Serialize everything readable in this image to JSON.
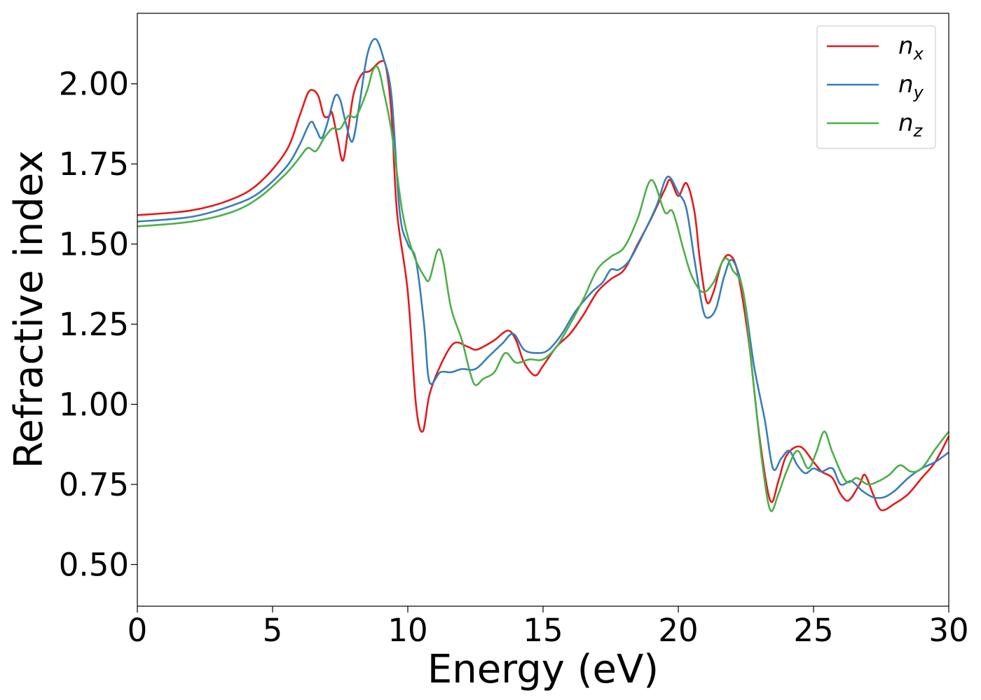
{
  "chart_data": {
    "type": "line",
    "xlabel": "Energy (eV)",
    "ylabel": "Refractive index",
    "xlim": [
      0,
      30
    ],
    "ylim": [
      0.37,
      2.22
    ],
    "xticks": [
      0,
      5,
      10,
      15,
      20,
      25,
      30
    ],
    "xtick_labels": [
      "0",
      "5",
      "10",
      "15",
      "20",
      "25",
      "30"
    ],
    "yticks": [
      0.5,
      0.75,
      1.0,
      1.25,
      1.5,
      1.75,
      2.0
    ],
    "ytick_labels": [
      "0.50",
      "0.75",
      "1.00",
      "1.25",
      "1.50",
      "1.75",
      "2.00"
    ],
    "grid": false,
    "legend_position": "top-right",
    "series": [
      {
        "name": "n",
        "subscript": "x",
        "color": "#e41a1c",
        "points": [
          [
            0,
            1.59
          ],
          [
            2,
            1.605
          ],
          [
            3.5,
            1.64
          ],
          [
            4.5,
            1.69
          ],
          [
            5.5,
            1.79
          ],
          [
            6,
            1.9
          ],
          [
            6.3,
            1.97
          ],
          [
            6.5,
            1.98
          ],
          [
            6.7,
            1.96
          ],
          [
            6.9,
            1.9
          ],
          [
            7.1,
            1.9
          ],
          [
            7.2,
            1.91
          ],
          [
            7.4,
            1.83
          ],
          [
            7.6,
            1.76
          ],
          [
            7.8,
            1.86
          ],
          [
            8,
            1.97
          ],
          [
            8.3,
            2.03
          ],
          [
            8.6,
            2.04
          ],
          [
            9,
            2.07
          ],
          [
            9.2,
            2.05
          ],
          [
            9.4,
            1.9
          ],
          [
            9.6,
            1.6
          ],
          [
            10,
            1.35
          ],
          [
            10.3,
            1.0
          ],
          [
            10.55,
            0.915
          ],
          [
            10.8,
            1.03
          ],
          [
            11.2,
            1.12
          ],
          [
            11.7,
            1.19
          ],
          [
            12.2,
            1.18
          ],
          [
            12.5,
            1.17
          ],
          [
            12.8,
            1.18
          ],
          [
            13.2,
            1.2
          ],
          [
            13.7,
            1.23
          ],
          [
            14,
            1.2
          ],
          [
            14.3,
            1.13
          ],
          [
            14.7,
            1.09
          ],
          [
            15,
            1.12
          ],
          [
            15.5,
            1.18
          ],
          [
            16,
            1.22
          ],
          [
            16.5,
            1.28
          ],
          [
            17,
            1.35
          ],
          [
            17.5,
            1.39
          ],
          [
            18,
            1.42
          ],
          [
            18.5,
            1.5
          ],
          [
            19,
            1.58
          ],
          [
            19.5,
            1.67
          ],
          [
            19.7,
            1.7
          ],
          [
            20,
            1.65
          ],
          [
            20.3,
            1.69
          ],
          [
            20.6,
            1.6
          ],
          [
            20.8,
            1.45
          ],
          [
            21.05,
            1.32
          ],
          [
            21.3,
            1.35
          ],
          [
            21.6,
            1.44
          ],
          [
            21.9,
            1.465
          ],
          [
            22.2,
            1.41
          ],
          [
            22.6,
            1.2
          ],
          [
            23,
            0.9
          ],
          [
            23.4,
            0.7
          ],
          [
            23.7,
            0.76
          ],
          [
            24,
            0.84
          ],
          [
            24.5,
            0.868
          ],
          [
            25,
            0.82
          ],
          [
            25.3,
            0.79
          ],
          [
            25.7,
            0.77
          ],
          [
            26,
            0.72
          ],
          [
            26.3,
            0.7
          ],
          [
            26.7,
            0.75
          ],
          [
            26.9,
            0.78
          ],
          [
            27.2,
            0.72
          ],
          [
            27.5,
            0.67
          ],
          [
            28,
            0.69
          ],
          [
            28.5,
            0.72
          ],
          [
            29,
            0.77
          ],
          [
            29.5,
            0.82
          ],
          [
            30,
            0.9
          ]
        ]
      },
      {
        "name": "n",
        "subscript": "y",
        "color": "#377eb8",
        "points": [
          [
            0,
            1.57
          ],
          [
            2,
            1.585
          ],
          [
            3.5,
            1.62
          ],
          [
            4.5,
            1.66
          ],
          [
            5.5,
            1.74
          ],
          [
            6,
            1.81
          ],
          [
            6.4,
            1.88
          ],
          [
            6.6,
            1.86
          ],
          [
            6.8,
            1.83
          ],
          [
            7,
            1.87
          ],
          [
            7.3,
            1.96
          ],
          [
            7.5,
            1.95
          ],
          [
            7.7,
            1.88
          ],
          [
            7.95,
            1.82
          ],
          [
            8.2,
            1.93
          ],
          [
            8.5,
            2.09
          ],
          [
            8.8,
            2.14
          ],
          [
            9.1,
            2.08
          ],
          [
            9.4,
            1.96
          ],
          [
            9.7,
            1.6
          ],
          [
            10,
            1.5
          ],
          [
            10.3,
            1.45
          ],
          [
            10.6,
            1.25
          ],
          [
            10.8,
            1.07
          ],
          [
            11.2,
            1.1
          ],
          [
            11.6,
            1.1
          ],
          [
            12,
            1.11
          ],
          [
            12.5,
            1.11
          ],
          [
            13,
            1.15
          ],
          [
            13.5,
            1.19
          ],
          [
            13.9,
            1.22
          ],
          [
            14.3,
            1.17
          ],
          [
            14.8,
            1.16
          ],
          [
            15.2,
            1.17
          ],
          [
            15.7,
            1.22
          ],
          [
            16.2,
            1.29
          ],
          [
            16.8,
            1.35
          ],
          [
            17.2,
            1.38
          ],
          [
            17.5,
            1.42
          ],
          [
            17.8,
            1.42
          ],
          [
            18.2,
            1.45
          ],
          [
            18.7,
            1.53
          ],
          [
            19.2,
            1.62
          ],
          [
            19.6,
            1.71
          ],
          [
            20,
            1.66
          ],
          [
            20.3,
            1.61
          ],
          [
            20.6,
            1.45
          ],
          [
            20.9,
            1.3
          ],
          [
            21.1,
            1.27
          ],
          [
            21.4,
            1.3
          ],
          [
            21.7,
            1.4
          ],
          [
            22,
            1.45
          ],
          [
            22.4,
            1.35
          ],
          [
            22.8,
            1.12
          ],
          [
            23.2,
            0.95
          ],
          [
            23.5,
            0.8
          ],
          [
            23.8,
            0.83
          ],
          [
            24.1,
            0.855
          ],
          [
            24.4,
            0.81
          ],
          [
            24.7,
            0.785
          ],
          [
            25,
            0.8
          ],
          [
            25.3,
            0.79
          ],
          [
            25.7,
            0.8
          ],
          [
            26,
            0.75
          ],
          [
            26.4,
            0.76
          ],
          [
            26.8,
            0.73
          ],
          [
            27.2,
            0.71
          ],
          [
            27.6,
            0.71
          ],
          [
            28,
            0.73
          ],
          [
            28.5,
            0.77
          ],
          [
            29,
            0.8
          ],
          [
            29.5,
            0.82
          ],
          [
            30,
            0.85
          ]
        ]
      },
      {
        "name": "n",
        "subscript": "z",
        "color": "#4daf4a",
        "points": [
          [
            0,
            1.555
          ],
          [
            2,
            1.57
          ],
          [
            3.5,
            1.6
          ],
          [
            4.5,
            1.645
          ],
          [
            5.5,
            1.72
          ],
          [
            6,
            1.77
          ],
          [
            6.3,
            1.8
          ],
          [
            6.6,
            1.79
          ],
          [
            6.9,
            1.83
          ],
          [
            7.2,
            1.86
          ],
          [
            7.5,
            1.86
          ],
          [
            7.8,
            1.9
          ],
          [
            8.1,
            1.9
          ],
          [
            8.5,
            1.98
          ],
          [
            8.7,
            2.04
          ],
          [
            8.9,
            2.05
          ],
          [
            9.1,
            1.98
          ],
          [
            9.4,
            1.85
          ],
          [
            9.8,
            1.6
          ],
          [
            10.2,
            1.47
          ],
          [
            10.6,
            1.4
          ],
          [
            10.8,
            1.39
          ],
          [
            11.1,
            1.48
          ],
          [
            11.3,
            1.45
          ],
          [
            11.6,
            1.3
          ],
          [
            12,
            1.2
          ],
          [
            12.3,
            1.1
          ],
          [
            12.5,
            1.06
          ],
          [
            12.8,
            1.08
          ],
          [
            13.2,
            1.1
          ],
          [
            13.6,
            1.16
          ],
          [
            14,
            1.13
          ],
          [
            14.5,
            1.14
          ],
          [
            15,
            1.14
          ],
          [
            15.5,
            1.18
          ],
          [
            16,
            1.25
          ],
          [
            16.5,
            1.33
          ],
          [
            17,
            1.42
          ],
          [
            17.5,
            1.46
          ],
          [
            18,
            1.49
          ],
          [
            18.5,
            1.58
          ],
          [
            19,
            1.7
          ],
          [
            19.5,
            1.6
          ],
          [
            19.8,
            1.6
          ],
          [
            20.2,
            1.48
          ],
          [
            20.5,
            1.4
          ],
          [
            20.9,
            1.35
          ],
          [
            21.3,
            1.38
          ],
          [
            21.6,
            1.44
          ],
          [
            21.8,
            1.455
          ],
          [
            22,
            1.42
          ],
          [
            22.4,
            1.35
          ],
          [
            22.8,
            1.05
          ],
          [
            23.1,
            0.82
          ],
          [
            23.4,
            0.67
          ],
          [
            23.7,
            0.72
          ],
          [
            24,
            0.79
          ],
          [
            24.4,
            0.855
          ],
          [
            24.8,
            0.8
          ],
          [
            25.1,
            0.85
          ],
          [
            25.4,
            0.915
          ],
          [
            25.7,
            0.85
          ],
          [
            26.2,
            0.76
          ],
          [
            26.6,
            0.77
          ],
          [
            27,
            0.75
          ],
          [
            27.4,
            0.76
          ],
          [
            27.8,
            0.78
          ],
          [
            28.2,
            0.81
          ],
          [
            28.6,
            0.79
          ],
          [
            29,
            0.8
          ],
          [
            29.5,
            0.86
          ],
          [
            30,
            0.915
          ]
        ]
      }
    ]
  }
}
